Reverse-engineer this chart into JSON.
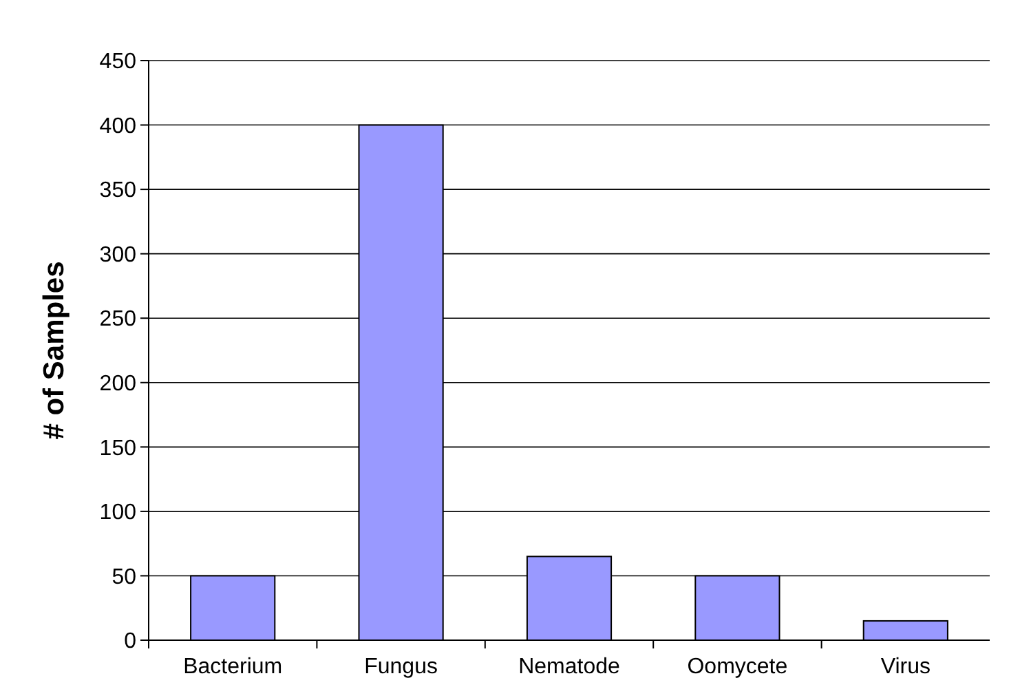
{
  "chart_data": {
    "type": "bar",
    "ylabel": "# of Samples",
    "categories": [
      "Bacterium",
      "Fungus",
      "Nematode",
      "Oomycete",
      "Virus"
    ],
    "values": [
      50,
      400,
      65,
      50,
      15
    ],
    "color": "#9999ff",
    "ylim": [
      0,
      450
    ],
    "yticks": [
      0,
      50,
      100,
      150,
      200,
      250,
      300,
      350,
      400,
      450
    ],
    "grid": "y"
  }
}
